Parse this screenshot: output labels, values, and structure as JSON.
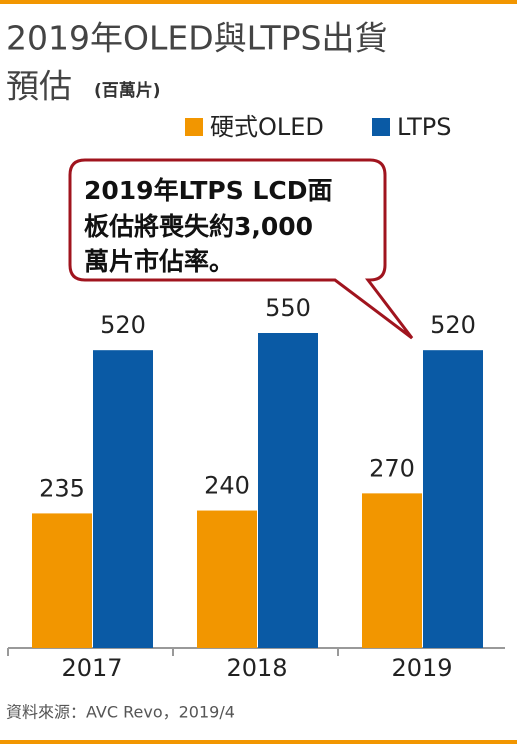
{
  "chart_data": {
    "type": "bar",
    "title": [
      "2019年OLED與LTPS出貨",
      "預估"
    ],
    "subtitle": "(百萬片)",
    "annotation": [
      "2019年LTPS LCD面",
      "板估將喪失約3,000",
      "萬片市佔率。"
    ],
    "source": "資料來源：AVC Revo，2019/4",
    "categories": [
      "2017",
      "2018",
      "2019"
    ],
    "series": [
      {
        "name": "硬式OLED",
        "color": "#f29600",
        "values": [
          235,
          240,
          270
        ]
      },
      {
        "name": "LTPS",
        "color": "#0a5aa5",
        "values": [
          520,
          550,
          520
        ]
      }
    ]
  }
}
